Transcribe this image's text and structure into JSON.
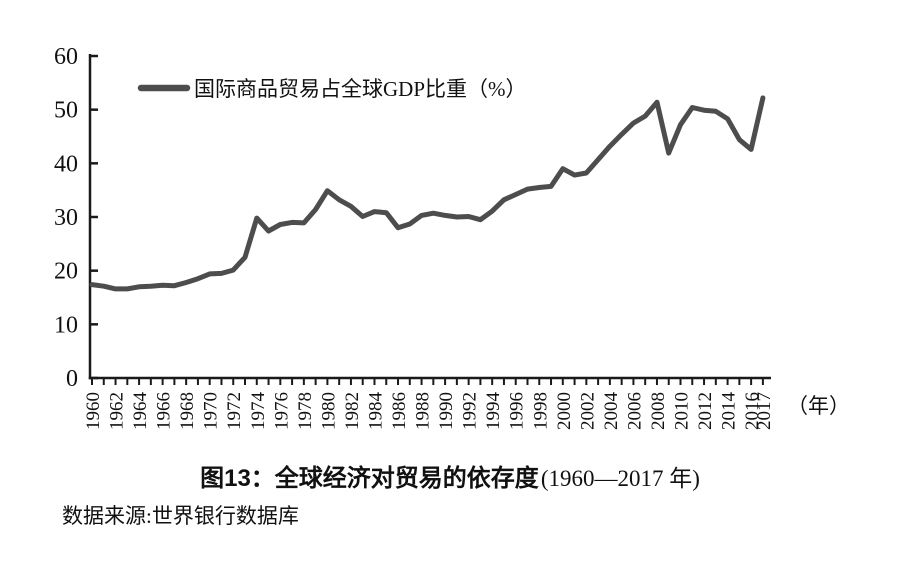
{
  "figure": {
    "caption_bold": "图13：全球经济对贸易的依存度",
    "caption_regular": "(1960—2017 年)",
    "source_note": "数据来源:世界银行数据库"
  },
  "chart_data": {
    "type": "line",
    "title": "",
    "legend": {
      "label": "国际商品贸易占全球GDP比重（%）",
      "position": "top-left-inside"
    },
    "xlabel": "（年）",
    "ylabel": "",
    "ylim": [
      0,
      60
    ],
    "yticks": [
      0,
      10,
      20,
      30,
      40,
      50,
      60
    ],
    "grid": false,
    "line_color": "#4d4d4d",
    "axis_color": "#1a1a1a",
    "x": [
      1960,
      1961,
      1962,
      1963,
      1964,
      1965,
      1966,
      1967,
      1968,
      1969,
      1970,
      1971,
      1972,
      1973,
      1974,
      1975,
      1976,
      1977,
      1978,
      1979,
      1980,
      1981,
      1982,
      1983,
      1984,
      1985,
      1986,
      1987,
      1988,
      1989,
      1990,
      1991,
      1992,
      1993,
      1994,
      1995,
      1996,
      1997,
      1998,
      1999,
      2000,
      2001,
      2002,
      2003,
      2004,
      2005,
      2006,
      2007,
      2008,
      2009,
      2010,
      2011,
      2012,
      2013,
      2014,
      2015,
      2016,
      2017
    ],
    "x_tick_labels": [
      1960,
      1962,
      1964,
      1966,
      1968,
      1970,
      1972,
      1974,
      1976,
      1978,
      1980,
      1982,
      1984,
      1986,
      1988,
      1990,
      1992,
      1994,
      1996,
      1998,
      2000,
      2002,
      2004,
      2006,
      2008,
      2010,
      2012,
      2014,
      2016,
      2017
    ],
    "series": [
      {
        "name": "国际商品贸易占全球GDP比重（%）",
        "values": [
          17.4,
          17.1,
          16.6,
          16.6,
          17.0,
          17.1,
          17.3,
          17.2,
          17.8,
          18.5,
          19.4,
          19.5,
          20.1,
          22.5,
          29.8,
          27.4,
          28.6,
          29.0,
          28.9,
          31.4,
          34.9,
          33.2,
          32.0,
          30.1,
          31.0,
          30.8,
          28.0,
          28.7,
          30.3,
          30.7,
          30.3,
          30.0,
          30.1,
          29.5,
          31.1,
          33.2,
          34.2,
          35.2,
          35.5,
          35.7,
          39.0,
          37.8,
          38.2,
          40.7,
          43.2,
          45.4,
          47.5,
          48.8,
          51.4,
          41.9,
          47.2,
          50.4,
          49.9,
          49.7,
          48.3,
          44.4,
          42.6,
          52.2
        ]
      }
    ]
  }
}
